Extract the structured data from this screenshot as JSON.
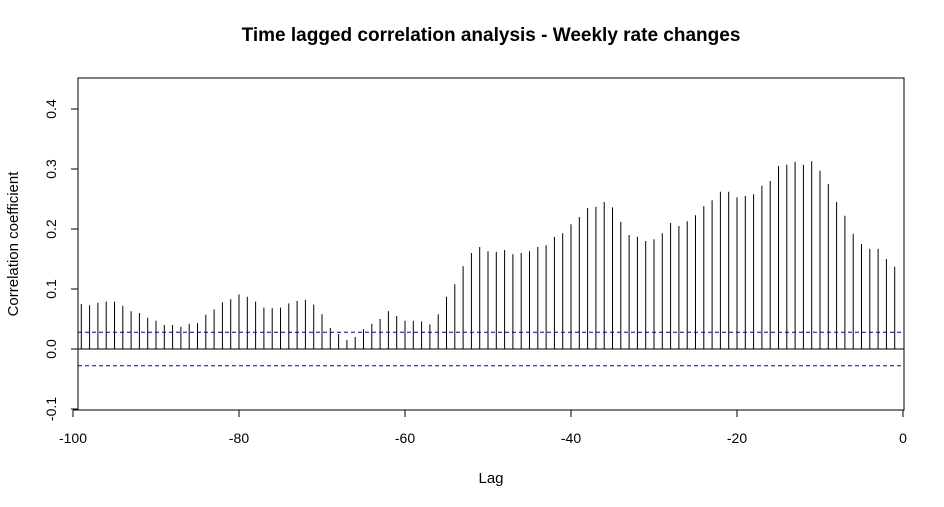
{
  "chart_data": {
    "type": "bar",
    "title": "Time lagged correlation analysis - Weekly rate changes",
    "xlabel": "Lag",
    "ylabel": "Correlation coefficient",
    "xlim": [
      -100,
      0
    ],
    "ylim": [
      -0.1,
      0.45
    ],
    "x_ticks": [
      -100,
      -80,
      -60,
      -40,
      -20,
      0
    ],
    "y_ticks": [
      -0.1,
      0.0,
      0.1,
      0.2,
      0.3,
      0.4
    ],
    "x_tick_labels": [
      "-100",
      "-80",
      "-60",
      "-40",
      "-20",
      "0"
    ],
    "y_tick_labels": [
      "-0.1",
      "0.0",
      "0.1",
      "0.2",
      "0.3",
      "0.4"
    ],
    "confidence_band": {
      "upper": 0.028,
      "lower": -0.028,
      "color": "#00008b"
    },
    "zero_line": true,
    "grid": false,
    "lags": [
      -99,
      -98,
      -97,
      -96,
      -95,
      -94,
      -93,
      -92,
      -91,
      -90,
      -89,
      -88,
      -87,
      -86,
      -85,
      -84,
      -83,
      -82,
      -81,
      -80,
      -79,
      -78,
      -77,
      -76,
      -75,
      -74,
      -73,
      -72,
      -71,
      -70,
      -69,
      -68,
      -67,
      -66,
      -65,
      -64,
      -63,
      -62,
      -61,
      -60,
      -59,
      -58,
      -57,
      -56,
      -55,
      -54,
      -53,
      -52,
      -51,
      -50,
      -49,
      -48,
      -47,
      -46,
      -45,
      -44,
      -43,
      -42,
      -41,
      -40,
      -39,
      -38,
      -37,
      -36,
      -35,
      -34,
      -33,
      -32,
      -31,
      -30,
      -29,
      -28,
      -27,
      -26,
      -25,
      -24,
      -23,
      -22,
      -21,
      -20,
      -19,
      -18,
      -17,
      -16,
      -15,
      -14,
      -13,
      -12,
      -11,
      -10,
      -9,
      -8,
      -7,
      -6,
      -5,
      -4,
      -3,
      -2,
      -1
    ],
    "values": [
      0.075,
      0.073,
      0.077,
      0.079,
      0.079,
      0.072,
      0.063,
      0.06,
      0.052,
      0.047,
      0.04,
      0.04,
      0.037,
      0.042,
      0.043,
      0.057,
      0.066,
      0.078,
      0.083,
      0.091,
      0.087,
      0.079,
      0.069,
      0.068,
      0.069,
      0.076,
      0.08,
      0.082,
      0.074,
      0.058,
      0.035,
      0.025,
      0.015,
      0.02,
      0.033,
      0.042,
      0.05,
      0.063,
      0.055,
      0.047,
      0.047,
      0.046,
      0.041,
      0.058,
      0.087,
      0.108,
      0.138,
      0.16,
      0.17,
      0.163,
      0.162,
      0.165,
      0.158,
      0.16,
      0.163,
      0.17,
      0.173,
      0.187,
      0.193,
      0.208,
      0.22,
      0.235,
      0.237,
      0.245,
      0.236,
      0.212,
      0.19,
      0.187,
      0.18,
      0.183,
      0.193,
      0.21,
      0.205,
      0.213,
      0.223,
      0.238,
      0.248,
      0.262,
      0.262,
      0.253,
      0.255,
      0.258,
      0.272,
      0.28,
      0.305,
      0.307,
      0.312,
      0.307,
      0.313,
      0.297,
      0.275,
      0.245,
      0.222,
      0.192,
      0.175,
      0.167,
      0.167,
      0.15,
      0.137
    ],
    "bar_color": "#000000"
  }
}
